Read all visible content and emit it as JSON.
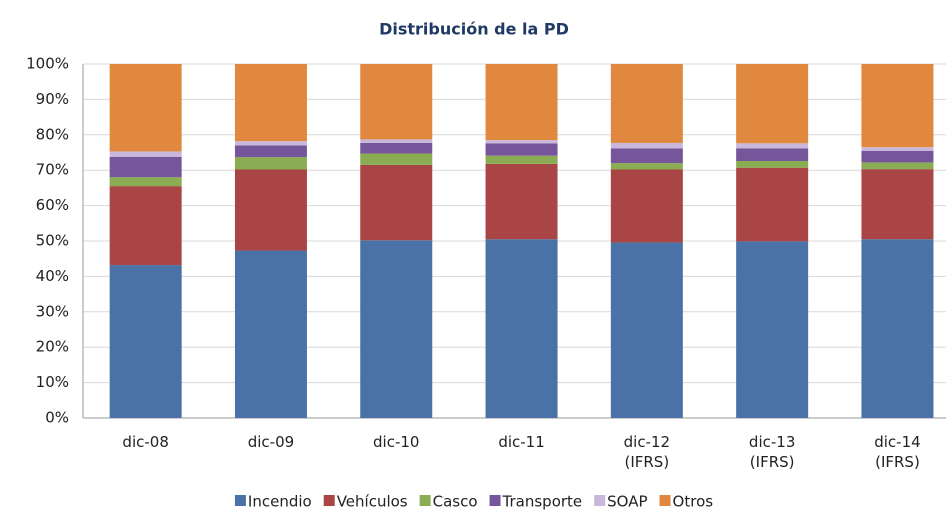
{
  "chart_data": {
    "type": "stacked_bar",
    "title": "Distribución de la PD",
    "categories": [
      "dic-08",
      "dic-09",
      "dic-10",
      "dic-11",
      "dic-12\n(IFRS)",
      "dic-13\n(IFRS)",
      "dic-14\n(IFRS)"
    ],
    "series": [
      {
        "name": "Incendio",
        "color": "#4a72a6",
        "values": [
          43.2,
          47.3,
          50.2,
          50.5,
          49.6,
          49.9,
          50.5
        ]
      },
      {
        "name": "Vehículos",
        "color": "#a94545",
        "values": [
          22.3,
          22.9,
          21.3,
          21.3,
          20.6,
          20.8,
          19.8
        ]
      },
      {
        "name": "Casco",
        "color": "#8aac52",
        "values": [
          2.5,
          3.5,
          3.2,
          2.3,
          1.8,
          1.9,
          1.9
        ]
      },
      {
        "name": "Transporte",
        "color": "#76569a",
        "values": [
          5.8,
          3.3,
          3.0,
          3.5,
          4.2,
          3.6,
          3.3
        ]
      },
      {
        "name": "SOAP",
        "color": "#c9b8dc",
        "values": [
          1.5,
          1.2,
          1.0,
          0.9,
          1.5,
          1.4,
          1.0
        ]
      },
      {
        "name": "Otros",
        "color": "#e0893e",
        "values": [
          24.7,
          21.8,
          21.3,
          21.5,
          22.3,
          22.4,
          23.5
        ]
      }
    ],
    "ylim": [
      0,
      100
    ],
    "yticks": [
      {
        "value": 0,
        "label": "0%"
      },
      {
        "value": 10,
        "label": "10%"
      },
      {
        "value": 20,
        "label": "20%"
      },
      {
        "value": 30,
        "label": "30%"
      },
      {
        "value": 40,
        "label": "40%"
      },
      {
        "value": 50,
        "label": "50%"
      },
      {
        "value": 60,
        "label": "60%"
      },
      {
        "value": 70,
        "label": "70%"
      },
      {
        "value": 80,
        "label": "80%"
      },
      {
        "value": 90,
        "label": "90%"
      },
      {
        "value": 100,
        "label": "100%"
      }
    ],
    "grid": true,
    "legend": "bottom"
  }
}
